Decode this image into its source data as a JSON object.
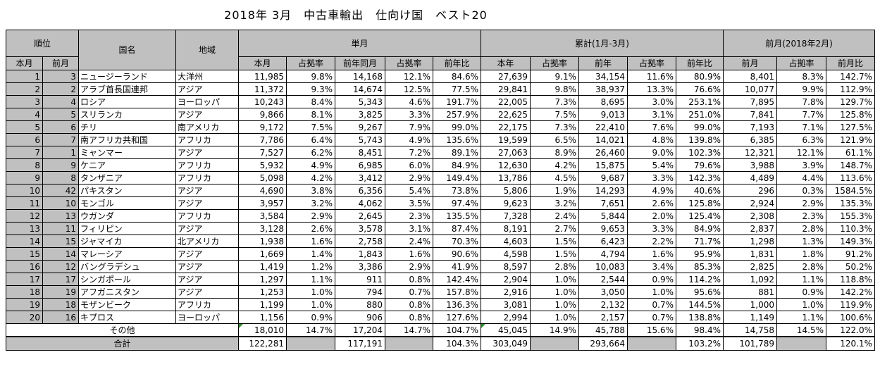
{
  "title": "2018年 3月　中古車輸出　仕向け国　ベスト20",
  "headers": {
    "rank": "順位",
    "rank_this": "本月",
    "rank_prev": "前月",
    "country": "国名",
    "region": "地域",
    "monthly": "単月",
    "cumulative": "累計(1月-3月)",
    "prev_month": "前月(2018年2月)",
    "m_this": "本月",
    "m_share": "占拠率",
    "m_ly": "前年同月",
    "m_ly_share": "占拠率",
    "m_yoy": "前年比",
    "c_this": "本年",
    "c_share": "占拠率",
    "c_ly": "前年",
    "c_ly_share": "占拠率",
    "c_yoy": "前年比",
    "p_prev": "前月",
    "p_share": "占拠率",
    "p_mom": "前月比"
  },
  "rows": [
    {
      "r": "1",
      "p": "3",
      "country": "ニュージーランド",
      "region": "大洋州",
      "m": "11,985",
      "ms": "9.8%",
      "ly": "14,168",
      "lys": "12.1%",
      "yoy": "84.6%",
      "c": "27,639",
      "cs": "9.1%",
      "cly": "34,154",
      "clys": "11.6%",
      "cyoy": "80.9%",
      "pm": "8,401",
      "pms": "8.3%",
      "mom": "142.7%"
    },
    {
      "r": "2",
      "p": "2",
      "country": "アラブ首長国連邦",
      "region": "アジア",
      "m": "11,372",
      "ms": "9.3%",
      "ly": "14,674",
      "lys": "12.5%",
      "yoy": "77.5%",
      "c": "29,841",
      "cs": "9.8%",
      "cly": "38,937",
      "clys": "13.3%",
      "cyoy": "76.6%",
      "pm": "10,077",
      "pms": "9.9%",
      "mom": "112.9%"
    },
    {
      "r": "3",
      "p": "4",
      "country": "ロシア",
      "region": "ヨーロッパ",
      "m": "10,243",
      "ms": "8.4%",
      "ly": "5,343",
      "lys": "4.6%",
      "yoy": "191.7%",
      "c": "22,005",
      "cs": "7.3%",
      "cly": "8,695",
      "clys": "3.0%",
      "cyoy": "253.1%",
      "pm": "7,895",
      "pms": "7.8%",
      "mom": "129.7%"
    },
    {
      "r": "4",
      "p": "5",
      "country": "スリランカ",
      "region": "アジア",
      "m": "9,866",
      "ms": "8.1%",
      "ly": "3,825",
      "lys": "3.3%",
      "yoy": "257.9%",
      "c": "22,625",
      "cs": "7.5%",
      "cly": "9,013",
      "clys": "3.1%",
      "cyoy": "251.0%",
      "pm": "7,841",
      "pms": "7.7%",
      "mom": "125.8%"
    },
    {
      "r": "5",
      "p": "6",
      "country": "チリ",
      "region": "南アメリカ",
      "m": "9,172",
      "ms": "7.5%",
      "ly": "9,267",
      "lys": "7.9%",
      "yoy": "99.0%",
      "c": "22,175",
      "cs": "7.3%",
      "cly": "22,410",
      "clys": "7.6%",
      "cyoy": "99.0%",
      "pm": "7,193",
      "pms": "7.1%",
      "mom": "127.5%"
    },
    {
      "r": "6",
      "p": "7",
      "country": "南アフリカ共和国",
      "region": "アフリカ",
      "m": "7,786",
      "ms": "6.4%",
      "ly": "5,743",
      "lys": "4.9%",
      "yoy": "135.6%",
      "c": "19,599",
      "cs": "6.5%",
      "cly": "14,021",
      "clys": "4.8%",
      "cyoy": "139.8%",
      "pm": "6,385",
      "pms": "6.3%",
      "mom": "121.9%"
    },
    {
      "r": "7",
      "p": "1",
      "country": "ミャンマー",
      "region": "アジア",
      "m": "7,527",
      "ms": "6.2%",
      "ly": "8,451",
      "lys": "7.2%",
      "yoy": "89.1%",
      "c": "27,063",
      "cs": "8.9%",
      "cly": "26,460",
      "clys": "9.0%",
      "cyoy": "102.3%",
      "pm": "12,321",
      "pms": "12.1%",
      "mom": "61.1%"
    },
    {
      "r": "8",
      "p": "9",
      "country": "ケニア",
      "region": "アフリカ",
      "m": "5,932",
      "ms": "4.9%",
      "ly": "6,985",
      "lys": "6.0%",
      "yoy": "84.9%",
      "c": "12,630",
      "cs": "4.2%",
      "cly": "15,875",
      "clys": "5.4%",
      "cyoy": "79.6%",
      "pm": "3,988",
      "pms": "3.9%",
      "mom": "148.7%"
    },
    {
      "r": "9",
      "p": "8",
      "country": "タンザニア",
      "region": "アフリカ",
      "m": "5,098",
      "ms": "4.2%",
      "ly": "3,412",
      "lys": "2.9%",
      "yoy": "149.4%",
      "c": "13,786",
      "cs": "4.5%",
      "cly": "9,687",
      "clys": "3.3%",
      "cyoy": "142.3%",
      "pm": "4,489",
      "pms": "4.4%",
      "mom": "113.6%"
    },
    {
      "r": "10",
      "p": "42",
      "country": "パキスタン",
      "region": "アジア",
      "m": "4,690",
      "ms": "3.8%",
      "ly": "6,356",
      "lys": "5.4%",
      "yoy": "73.8%",
      "c": "5,806",
      "cs": "1.9%",
      "cly": "14,293",
      "clys": "4.9%",
      "cyoy": "40.6%",
      "pm": "296",
      "pms": "0.3%",
      "mom": "1584.5%"
    },
    {
      "r": "11",
      "p": "10",
      "country": "モンゴル",
      "region": "アジア",
      "m": "3,957",
      "ms": "3.2%",
      "ly": "4,062",
      "lys": "3.5%",
      "yoy": "97.4%",
      "c": "9,623",
      "cs": "3.2%",
      "cly": "7,651",
      "clys": "2.6%",
      "cyoy": "125.8%",
      "pm": "2,924",
      "pms": "2.9%",
      "mom": "135.3%"
    },
    {
      "r": "12",
      "p": "13",
      "country": "ウガンダ",
      "region": "アフリカ",
      "m": "3,584",
      "ms": "2.9%",
      "ly": "2,645",
      "lys": "2.3%",
      "yoy": "135.5%",
      "c": "7,328",
      "cs": "2.4%",
      "cly": "5,844",
      "clys": "2.0%",
      "cyoy": "125.4%",
      "pm": "2,308",
      "pms": "2.3%",
      "mom": "155.3%"
    },
    {
      "r": "13",
      "p": "11",
      "country": "フィリピン",
      "region": "アジア",
      "m": "3,128",
      "ms": "2.6%",
      "ly": "3,578",
      "lys": "3.1%",
      "yoy": "87.4%",
      "c": "8,191",
      "cs": "2.7%",
      "cly": "9,653",
      "clys": "3.3%",
      "cyoy": "84.9%",
      "pm": "2,837",
      "pms": "2.8%",
      "mom": "110.3%"
    },
    {
      "r": "14",
      "p": "15",
      "country": "ジャマイカ",
      "region": "北アメリカ",
      "m": "1,938",
      "ms": "1.6%",
      "ly": "2,758",
      "lys": "2.4%",
      "yoy": "70.3%",
      "c": "4,603",
      "cs": "1.5%",
      "cly": "6,423",
      "clys": "2.2%",
      "cyoy": "71.7%",
      "pm": "1,298",
      "pms": "1.3%",
      "mom": "149.3%"
    },
    {
      "r": "15",
      "p": "14",
      "country": "マレーシア",
      "region": "アジア",
      "m": "1,669",
      "ms": "1.4%",
      "ly": "1,843",
      "lys": "1.6%",
      "yoy": "90.6%",
      "c": "4,598",
      "cs": "1.5%",
      "cly": "4,794",
      "clys": "1.6%",
      "cyoy": "95.9%",
      "pm": "1,831",
      "pms": "1.8%",
      "mom": "91.2%"
    },
    {
      "r": "16",
      "p": "12",
      "country": "バングラデシュ",
      "region": "アジア",
      "m": "1,419",
      "ms": "1.2%",
      "ly": "3,386",
      "lys": "2.9%",
      "yoy": "41.9%",
      "c": "8,597",
      "cs": "2.8%",
      "cly": "10,083",
      "clys": "3.4%",
      "cyoy": "85.3%",
      "pm": "2,825",
      "pms": "2.8%",
      "mom": "50.2%"
    },
    {
      "r": "17",
      "p": "17",
      "country": "シンガポール",
      "region": "アジア",
      "m": "1,297",
      "ms": "1.1%",
      "ly": "911",
      "lys": "0.8%",
      "yoy": "142.4%",
      "c": "2,904",
      "cs": "1.0%",
      "cly": "2,544",
      "clys": "0.9%",
      "cyoy": "114.2%",
      "pm": "1,092",
      "pms": "1.1%",
      "mom": "118.8%"
    },
    {
      "r": "18",
      "p": "19",
      "country": "アフガニスタン",
      "region": "アジア",
      "m": "1,253",
      "ms": "1.0%",
      "ly": "794",
      "lys": "0.7%",
      "yoy": "157.8%",
      "c": "2,916",
      "cs": "1.0%",
      "cly": "3,050",
      "clys": "1.0%",
      "cyoy": "95.6%",
      "pm": "881",
      "pms": "0.9%",
      "mom": "142.2%"
    },
    {
      "r": "19",
      "p": "18",
      "country": "モザンビーク",
      "region": "アフリカ",
      "m": "1,199",
      "ms": "1.0%",
      "ly": "880",
      "lys": "0.8%",
      "yoy": "136.3%",
      "c": "3,081",
      "cs": "1.0%",
      "cly": "2,132",
      "clys": "0.7%",
      "cyoy": "144.5%",
      "pm": "1,000",
      "pms": "1.0%",
      "mom": "119.9%"
    },
    {
      "r": "20",
      "p": "16",
      "country": "キプロス",
      "region": "ヨーロッパ",
      "m": "1,156",
      "ms": "0.9%",
      "ly": "906",
      "lys": "0.8%",
      "yoy": "127.6%",
      "c": "2,994",
      "cs": "1.0%",
      "cly": "2,157",
      "clys": "0.7%",
      "cyoy": "138.8%",
      "pm": "1,149",
      "pms": "1.1%",
      "mom": "100.6%"
    }
  ],
  "others": {
    "label": "その他",
    "m": "18,010",
    "ms": "14.7%",
    "ly": "17,204",
    "lys": "14.7%",
    "yoy": "104.7%",
    "c": "45,045",
    "cs": "14.9%",
    "cly": "45,788",
    "clys": "15.6%",
    "cyoy": "98.4%",
    "pm": "14,758",
    "pms": "14.5%",
    "mom": "122.0%"
  },
  "total": {
    "label": "合計",
    "m": "122,281",
    "ly": "117,191",
    "yoy": "104.3%",
    "c": "303,049",
    "cly": "293,664",
    "cyoy": "103.2%",
    "pm": "101,789",
    "mom": "120.1%"
  }
}
